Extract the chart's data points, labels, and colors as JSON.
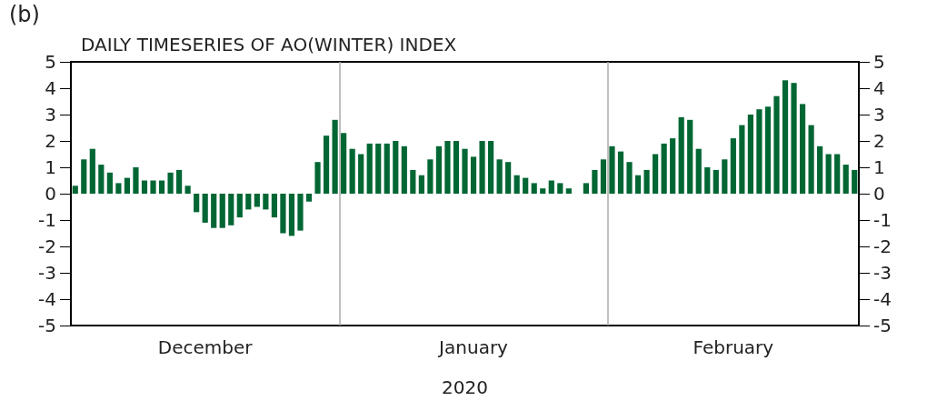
{
  "chart_data": {
    "type": "bar",
    "title": "DAILY TIMESERIES OF AO(WINTER) INDEX",
    "xlabel": "2020",
    "annotations": [
      "(b)"
    ],
    "x": [
      "2019-12-01T12:00",
      "2019-12-02T12:00",
      "2019-12-03T12:00",
      "2019-12-04T12:00",
      "2019-12-05T12:00",
      "2019-12-06T12:00",
      "2019-12-07T12:00",
      "2019-12-08T12:00",
      "2019-12-09T12:00",
      "2019-12-10T12:00",
      "2019-12-11T12:00",
      "2019-12-12T12:00",
      "2019-12-13T12:00",
      "2019-12-14T12:00",
      "2019-12-15T12:00",
      "2019-12-16T12:00",
      "2019-12-17T12:00",
      "2019-12-18T12:00",
      "2019-12-19T12:00",
      "2019-12-20T12:00",
      "2019-12-21T12:00",
      "2019-12-22T12:00",
      "2019-12-23T12:00",
      "2019-12-24T12:00",
      "2019-12-25T12:00",
      "2019-12-26T12:00",
      "2019-12-27T12:00",
      "2019-12-28T12:00",
      "2019-12-29T12:00",
      "2019-12-30T12:00",
      "2019-12-31T12:00",
      "2020-01-01T12:00",
      "2020-01-02T12:00",
      "2020-01-03T12:00",
      "2020-01-04T12:00",
      "2020-01-05T12:00",
      "2020-01-06T12:00",
      "2020-01-07T12:00",
      "2020-01-08T12:00",
      "2020-01-09T12:00",
      "2020-01-10T12:00",
      "2020-01-11T12:00",
      "2020-01-12T12:00",
      "2020-01-13T12:00",
      "2020-01-14T12:00",
      "2020-01-15T12:00",
      "2020-01-16T12:00",
      "2020-01-17T12:00",
      "2020-01-18T12:00",
      "2020-01-19T12:00",
      "2020-01-20T12:00",
      "2020-01-21T12:00",
      "2020-01-22T12:00",
      "2020-01-23T12:00",
      "2020-01-24T12:00",
      "2020-01-25T12:00",
      "2020-01-26T12:00",
      "2020-01-27T12:00",
      "2020-01-28T12:00",
      "2020-01-29T12:00",
      "2020-01-30T12:00",
      "2020-01-31T12:00",
      "2020-02-01T12:00",
      "2020-02-02T12:00",
      "2020-02-03T12:00",
      "2020-02-04T12:00",
      "2020-02-05T12:00",
      "2020-02-06T12:00",
      "2020-02-07T12:00",
      "2020-02-08T12:00",
      "2020-02-09T12:00",
      "2020-02-10T12:00",
      "2020-02-11T12:00",
      "2020-02-12T12:00",
      "2020-02-13T12:00",
      "2020-02-14T12:00",
      "2020-02-15T12:00",
      "2020-02-16T12:00",
      "2020-02-17T12:00",
      "2020-02-18T12:00",
      "2020-02-19T12:00",
      "2020-02-20T12:00",
      "2020-02-21T12:00",
      "2020-02-22T12:00",
      "2020-02-23T12:00",
      "2020-02-24T12:00",
      "2020-02-25T12:00",
      "2020-02-26T12:00",
      "2020-02-27T12:00",
      "2020-02-28T12:00",
      "2020-02-29T12:00"
    ],
    "series": [
      {
        "color": "#006633",
        "values": [
          0.3,
          1.3,
          1.7,
          1.1,
          0.8,
          0.4,
          0.6,
          1.0,
          0.5,
          0.5,
          0.5,
          0.8,
          0.9,
          0.3,
          -0.7,
          -1.1,
          -1.3,
          -1.3,
          -1.2,
          -0.9,
          -0.6,
          -0.5,
          -0.6,
          -0.9,
          -1.5,
          -1.6,
          -1.4,
          -0.3,
          1.2,
          2.2,
          2.8,
          2.3,
          1.7,
          1.5,
          1.9,
          1.9,
          1.9,
          2.0,
          1.8,
          0.9,
          0.7,
          1.3,
          1.8,
          2.0,
          2.0,
          1.7,
          1.4,
          2.0,
          2.0,
          1.3,
          1.2,
          0.7,
          0.6,
          0.4,
          0.2,
          0.5,
          0.4,
          0.2,
          0.0,
          0.4,
          0.9,
          1.3,
          1.8,
          1.6,
          1.2,
          0.7,
          0.9,
          1.5,
          1.9,
          2.1,
          2.9,
          2.8,
          1.7,
          1.0,
          0.9,
          1.3,
          2.1,
          2.6,
          3.0,
          3.2,
          3.3,
          3.7,
          4.3,
          4.2,
          3.4,
          2.6,
          1.8,
          1.5,
          1.5,
          1.1,
          0.9
        ]
      }
    ],
    "xlim": [
      "2019-12-01T00:00",
      "2020-03-01T00:00"
    ],
    "xticks": [
      {
        "value": "2019-12-16T12:00",
        "label": "December"
      },
      {
        "value": "2020-01-16T12:00",
        "label": "January"
      },
      {
        "value": "2020-02-15T12:00",
        "label": "February"
      }
    ],
    "ylim": [
      -5,
      5
    ],
    "yticks": [
      -5,
      -4,
      -3,
      -2,
      -1,
      0,
      1,
      2,
      3,
      4,
      5
    ],
    "y2lim": [
      -5,
      5
    ],
    "y2ticks": [
      -5,
      -4,
      -3,
      -2,
      -1,
      0,
      1,
      2,
      3,
      4,
      5
    ],
    "ref_lines": [
      {
        "axis": "x",
        "value": "2020-01-01T00:00",
        "label": null,
        "color": "#aaaaaa"
      },
      {
        "axis": "x",
        "value": "2020-02-01T00:00",
        "label": null,
        "color": "#aaaaaa"
      }
    ]
  }
}
